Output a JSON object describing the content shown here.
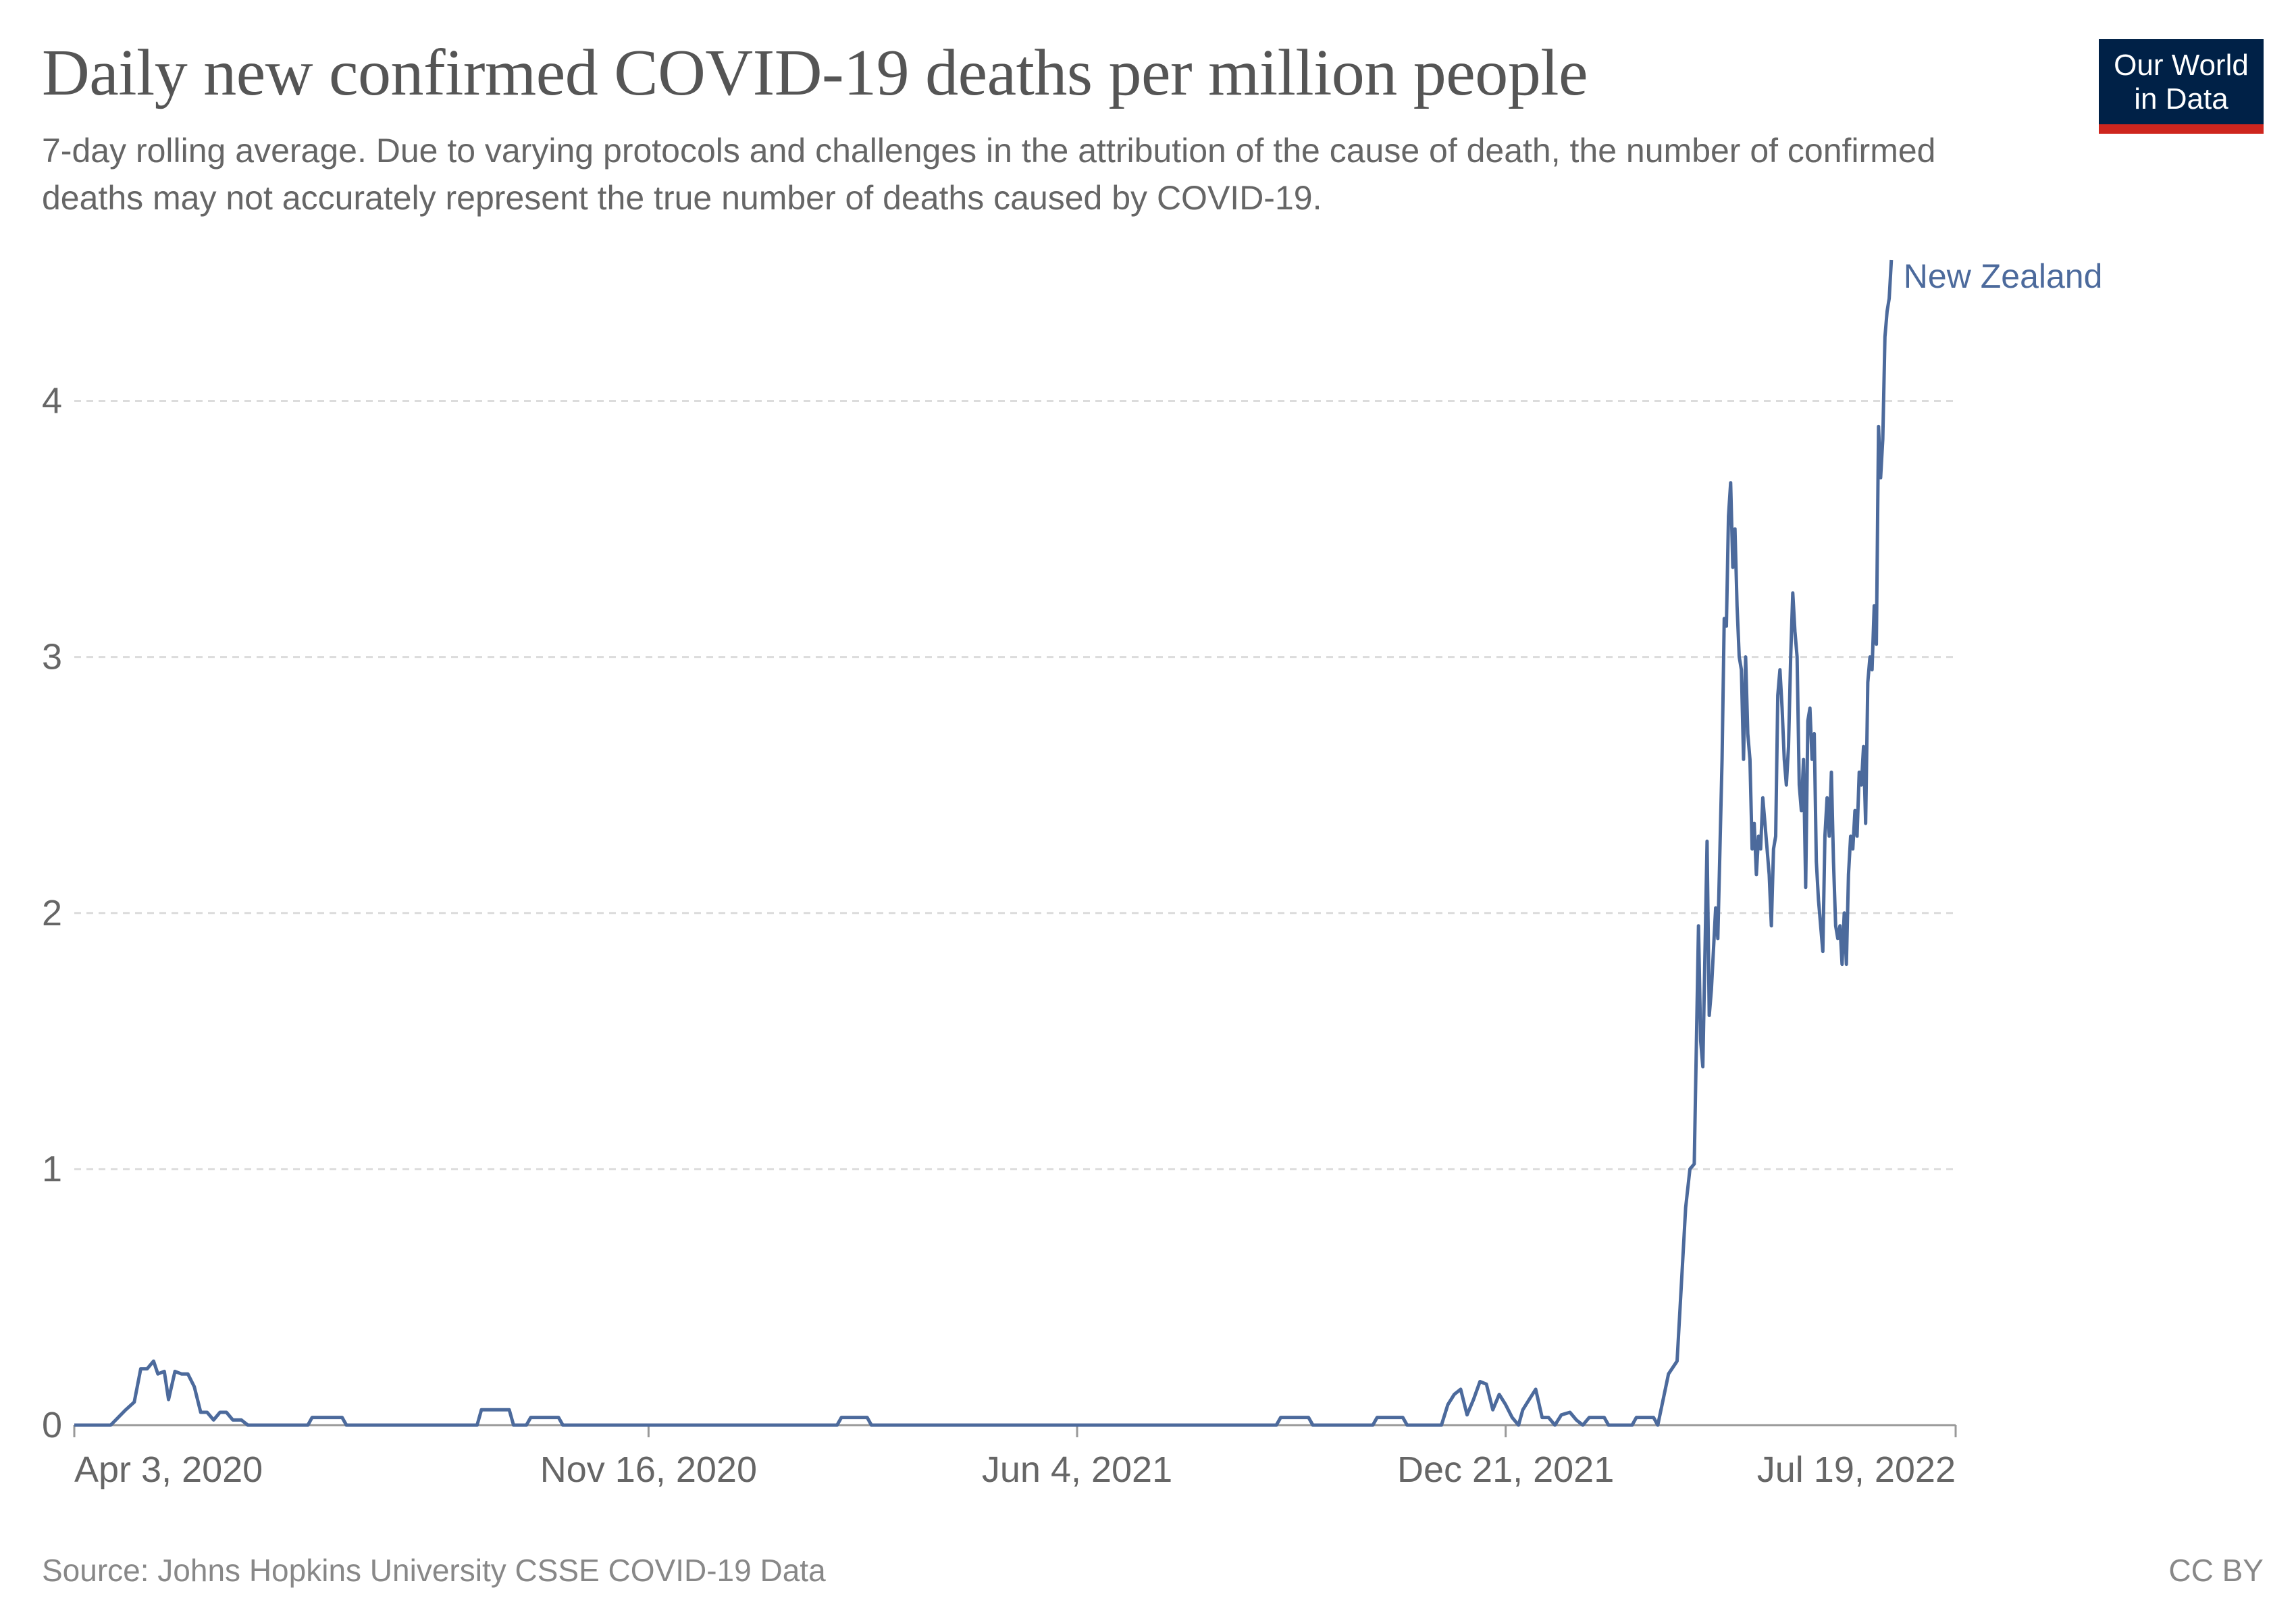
{
  "header": {
    "title": "Daily new confirmed COVID-19 deaths per million people",
    "subtitle": "7-day rolling average. Due to varying protocols and challenges in the attribution of the cause of death, the number of confirmed deaths may not accurately represent the true number of deaths caused by COVID-19."
  },
  "logo": {
    "line1": "Our World",
    "line2": "in Data",
    "bg_color": "#002147",
    "accent_color": "#ce261e"
  },
  "footer": {
    "source": "Source: Johns Hopkins University CSSE COVID-19 Data",
    "license": "CC BY"
  },
  "chart_data": {
    "type": "line",
    "title": "Daily new confirmed COVID-19 deaths per million people",
    "xlabel": "",
    "ylabel": "",
    "ylim": [
      0,
      4.55
    ],
    "xlim": [
      "2020-02-22",
      "2022-07-19"
    ],
    "grid": "horizontal dashed",
    "x_ticks": [
      "Apr 3, 2020",
      "Nov 16, 2020",
      "Jun 4, 2021",
      "Dec 21, 2021",
      "Jul 19, 2022"
    ],
    "y_ticks": [
      0,
      1,
      2,
      3,
      4
    ],
    "line_color": "#4c6a9c",
    "series": [
      {
        "name": "New Zealand",
        "points": [
          [
            "2020-02-22",
            0
          ],
          [
            "2020-03-10",
            0
          ],
          [
            "2020-03-17",
            0.06
          ],
          [
            "2020-03-21",
            0.09
          ],
          [
            "2020-03-24",
            0.22
          ],
          [
            "2020-03-27",
            0.22
          ],
          [
            "2020-03-30",
            0.25
          ],
          [
            "2020-04-01",
            0.2
          ],
          [
            "2020-04-04",
            0.21
          ],
          [
            "2020-04-06",
            0.1
          ],
          [
            "2020-04-09",
            0.21
          ],
          [
            "2020-04-12",
            0.2
          ],
          [
            "2020-04-15",
            0.2
          ],
          [
            "2020-04-18",
            0.15
          ],
          [
            "2020-04-21",
            0.05
          ],
          [
            "2020-04-24",
            0.05
          ],
          [
            "2020-04-27",
            0.02
          ],
          [
            "2020-04-30",
            0.05
          ],
          [
            "2020-05-03",
            0.05
          ],
          [
            "2020-05-06",
            0.02
          ],
          [
            "2020-05-10",
            0.02
          ],
          [
            "2020-05-13",
            0
          ],
          [
            "2020-06-10",
            0
          ],
          [
            "2020-06-12",
            0.03
          ],
          [
            "2020-06-26",
            0.03
          ],
          [
            "2020-06-28",
            0
          ],
          [
            "2020-08-28",
            0
          ],
          [
            "2020-08-30",
            0.06
          ],
          [
            "2020-09-12",
            0.06
          ],
          [
            "2020-09-14",
            0
          ],
          [
            "2020-09-20",
            0
          ],
          [
            "2020-09-22",
            0.03
          ],
          [
            "2020-10-05",
            0.03
          ],
          [
            "2020-10-07",
            0
          ],
          [
            "2021-02-12",
            0
          ],
          [
            "2021-02-14",
            0.03
          ],
          [
            "2021-02-26",
            0.03
          ],
          [
            "2021-02-28",
            0
          ],
          [
            "2021-09-05",
            0
          ],
          [
            "2021-09-07",
            0.03
          ],
          [
            "2021-09-20",
            0.03
          ],
          [
            "2021-09-22",
            0
          ],
          [
            "2021-10-20",
            0
          ],
          [
            "2021-10-22",
            0.03
          ],
          [
            "2021-11-03",
            0.03
          ],
          [
            "2021-11-05",
            0
          ],
          [
            "2021-11-21",
            0
          ],
          [
            "2021-11-24",
            0.08
          ],
          [
            "2021-11-27",
            0.12
          ],
          [
            "2021-11-30",
            0.14
          ],
          [
            "2021-12-03",
            0.04
          ],
          [
            "2021-12-06",
            0.1
          ],
          [
            "2021-12-09",
            0.17
          ],
          [
            "2021-12-12",
            0.16
          ],
          [
            "2021-12-15",
            0.06
          ],
          [
            "2021-12-18",
            0.12
          ],
          [
            "2021-12-21",
            0.08
          ],
          [
            "2021-12-24",
            0.03
          ],
          [
            "2021-12-27",
            0
          ],
          [
            "2021-12-29",
            0.06
          ],
          [
            "2022-01-01",
            0.1
          ],
          [
            "2022-01-04",
            0.14
          ],
          [
            "2022-01-07",
            0.03
          ],
          [
            "2022-01-10",
            0.03
          ],
          [
            "2022-01-13",
            0
          ],
          [
            "2022-01-16",
            0.04
          ],
          [
            "2022-01-20",
            0.05
          ],
          [
            "2022-01-23",
            0.02
          ],
          [
            "2022-01-26",
            0
          ],
          [
            "2022-01-29",
            0.03
          ],
          [
            "2022-02-05",
            0.03
          ],
          [
            "2022-02-07",
            0
          ],
          [
            "2022-02-18",
            0
          ],
          [
            "2022-02-20",
            0.03
          ],
          [
            "2022-02-28",
            0.03
          ],
          [
            "2022-03-02",
            0
          ],
          [
            "2022-03-07",
            0.2
          ],
          [
            "2022-03-11",
            0.25
          ],
          [
            "2022-03-15",
            0.85
          ],
          [
            "2022-03-17",
            1.0
          ],
          [
            "2022-03-19",
            1.02
          ],
          [
            "2022-03-21",
            1.95
          ],
          [
            "2022-03-22",
            1.5
          ],
          [
            "2022-03-23",
            1.4
          ],
          [
            "2022-03-25",
            2.28
          ],
          [
            "2022-03-26",
            1.6
          ],
          [
            "2022-03-27",
            1.7
          ],
          [
            "2022-03-29",
            2.02
          ],
          [
            "2022-03-30",
            1.9
          ],
          [
            "2022-04-01",
            2.6
          ],
          [
            "2022-04-02",
            3.15
          ],
          [
            "2022-04-03",
            3.12
          ],
          [
            "2022-04-04",
            3.55
          ],
          [
            "2022-04-05",
            3.68
          ],
          [
            "2022-04-06",
            3.35
          ],
          [
            "2022-04-07",
            3.5
          ],
          [
            "2022-04-08",
            3.2
          ],
          [
            "2022-04-09",
            3.0
          ],
          [
            "2022-04-10",
            2.95
          ],
          [
            "2022-04-11",
            2.6
          ],
          [
            "2022-04-12",
            3.0
          ],
          [
            "2022-04-13",
            2.7
          ],
          [
            "2022-04-14",
            2.6
          ],
          [
            "2022-04-15",
            2.25
          ],
          [
            "2022-04-16",
            2.35
          ],
          [
            "2022-04-17",
            2.15
          ],
          [
            "2022-04-18",
            2.3
          ],
          [
            "2022-04-19",
            2.25
          ],
          [
            "2022-04-20",
            2.45
          ],
          [
            "2022-04-21",
            2.35
          ],
          [
            "2022-04-23",
            2.15
          ],
          [
            "2022-04-24",
            1.95
          ],
          [
            "2022-04-25",
            2.25
          ],
          [
            "2022-04-26",
            2.3
          ],
          [
            "2022-04-27",
            2.85
          ],
          [
            "2022-04-28",
            2.95
          ],
          [
            "2022-04-29",
            2.8
          ],
          [
            "2022-04-30",
            2.6
          ],
          [
            "2022-05-01",
            2.5
          ],
          [
            "2022-05-02",
            2.65
          ],
          [
            "2022-05-03",
            3.0
          ],
          [
            "2022-05-04",
            3.25
          ],
          [
            "2022-05-05",
            3.1
          ],
          [
            "2022-05-06",
            3.0
          ],
          [
            "2022-05-07",
            2.5
          ],
          [
            "2022-05-08",
            2.4
          ],
          [
            "2022-05-09",
            2.6
          ],
          [
            "2022-05-10",
            2.1
          ],
          [
            "2022-05-11",
            2.75
          ],
          [
            "2022-05-12",
            2.8
          ],
          [
            "2022-05-13",
            2.6
          ],
          [
            "2022-05-14",
            2.7
          ],
          [
            "2022-05-15",
            2.2
          ],
          [
            "2022-05-16",
            2.05
          ],
          [
            "2022-05-17",
            1.95
          ],
          [
            "2022-05-18",
            1.85
          ],
          [
            "2022-05-19",
            2.3
          ],
          [
            "2022-05-20",
            2.45
          ],
          [
            "2022-05-21",
            2.3
          ],
          [
            "2022-05-22",
            2.55
          ],
          [
            "2022-05-23",
            2.2
          ],
          [
            "2022-05-24",
            1.95
          ],
          [
            "2022-05-25",
            1.9
          ],
          [
            "2022-05-26",
            1.95
          ],
          [
            "2022-05-27",
            1.8
          ],
          [
            "2022-05-28",
            2.0
          ],
          [
            "2022-05-29",
            1.8
          ],
          [
            "2022-05-30",
            2.15
          ],
          [
            "2022-05-31",
            2.3
          ],
          [
            "2022-06-01",
            2.25
          ],
          [
            "2022-06-02",
            2.4
          ],
          [
            "2022-06-03",
            2.3
          ],
          [
            "2022-06-04",
            2.55
          ],
          [
            "2022-06-05",
            2.5
          ],
          [
            "2022-06-06",
            2.65
          ],
          [
            "2022-06-07",
            2.35
          ],
          [
            "2022-06-08",
            2.9
          ],
          [
            "2022-06-09",
            3.0
          ],
          [
            "2022-06-10",
            2.95
          ],
          [
            "2022-06-11",
            3.2
          ],
          [
            "2022-06-12",
            3.05
          ],
          [
            "2022-06-13",
            3.9
          ],
          [
            "2022-06-14",
            3.7
          ],
          [
            "2022-06-15",
            3.85
          ],
          [
            "2022-06-16",
            4.25
          ],
          [
            "2022-06-17",
            4.35
          ],
          [
            "2022-06-18",
            4.4
          ],
          [
            "2022-06-19",
            4.55
          ]
        ]
      }
    ]
  }
}
